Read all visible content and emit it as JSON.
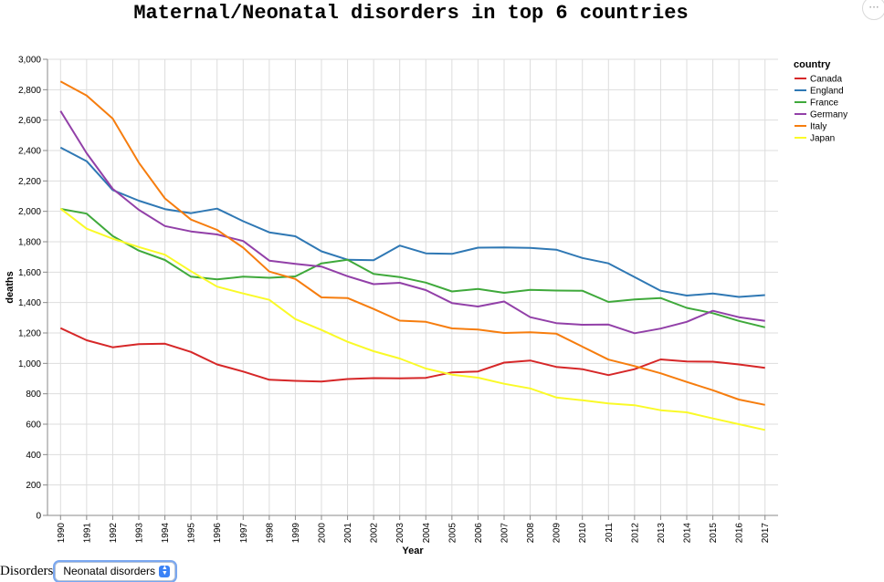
{
  "chart_data": {
    "type": "line",
    "title": "Maternal/Neonatal disorders in top 6 countries",
    "xlabel": "Year",
    "ylabel": "deaths",
    "ylim": [
      0,
      3000
    ],
    "yticks": [
      "0",
      "200",
      "400",
      "600",
      "800",
      "1,000",
      "1,200",
      "1,400",
      "1,600",
      "1,800",
      "2,000",
      "2,200",
      "2,400",
      "2,600",
      "2,800",
      "3,000"
    ],
    "grid": true,
    "legend_placement": "right",
    "legend_title": "country",
    "x": [
      "1990",
      "1991",
      "1992",
      "1993",
      "1994",
      "1995",
      "1996",
      "1997",
      "1998",
      "1999",
      "2000",
      "2001",
      "2002",
      "2003",
      "2004",
      "2005",
      "2006",
      "2007",
      "2008",
      "2009",
      "2010",
      "2011",
      "2012",
      "2013",
      "2014",
      "2015",
      "2016",
      "2017"
    ],
    "series": [
      {
        "name": "Canada",
        "color": "#d62728",
        "values": [
          1232,
          1152,
          1106,
          1127,
          1129,
          1075,
          993,
          946,
          892,
          885,
          881,
          897,
          903,
          901,
          905,
          941,
          947,
          1005,
          1019,
          977,
          962,
          923,
          962,
          1026,
          1012,
          1011,
          993,
          970
        ]
      },
      {
        "name": "England",
        "color": "#2f78b4",
        "values": [
          2420,
          2330,
          2140,
          2070,
          2015,
          1988,
          2018,
          1935,
          1862,
          1836,
          1737,
          1682,
          1678,
          1775,
          1724,
          1720,
          1761,
          1763,
          1760,
          1748,
          1693,
          1658,
          1568,
          1478,
          1446,
          1459,
          1437,
          1449
        ]
      },
      {
        "name": "France",
        "color": "#3fa93b",
        "values": [
          2016,
          1985,
          1838,
          1742,
          1680,
          1570,
          1552,
          1570,
          1563,
          1572,
          1658,
          1681,
          1588,
          1568,
          1531,
          1473,
          1490,
          1464,
          1484,
          1479,
          1478,
          1404,
          1420,
          1430,
          1365,
          1330,
          1279,
          1237
        ]
      },
      {
        "name": "Germany",
        "color": "#9240a8",
        "values": [
          2660,
          2382,
          2148,
          2010,
          1903,
          1868,
          1848,
          1805,
          1676,
          1655,
          1637,
          1573,
          1521,
          1530,
          1482,
          1397,
          1374,
          1407,
          1304,
          1265,
          1254,
          1255,
          1198,
          1229,
          1273,
          1346,
          1304,
          1279
        ]
      },
      {
        "name": "Italy",
        "color": "#f67d0e",
        "values": [
          2855,
          2762,
          2610,
          2320,
          2085,
          1946,
          1878,
          1761,
          1604,
          1555,
          1434,
          1430,
          1358,
          1281,
          1273,
          1230,
          1222,
          1200,
          1205,
          1195,
          1110,
          1025,
          982,
          935,
          878,
          823,
          762,
          727
        ]
      },
      {
        "name": "Japan",
        "color": "#fafa28",
        "values": [
          2018,
          1886,
          1820,
          1765,
          1715,
          1606,
          1505,
          1460,
          1418,
          1291,
          1220,
          1142,
          1080,
          1032,
          966,
          926,
          906,
          866,
          835,
          776,
          757,
          736,
          725,
          692,
          678,
          638,
          600,
          562
        ]
      }
    ]
  },
  "controls": {
    "disorders_label": "Disorders",
    "disorders_selected": "Neonatal disorders"
  },
  "menu": {
    "more_label": "···"
  }
}
